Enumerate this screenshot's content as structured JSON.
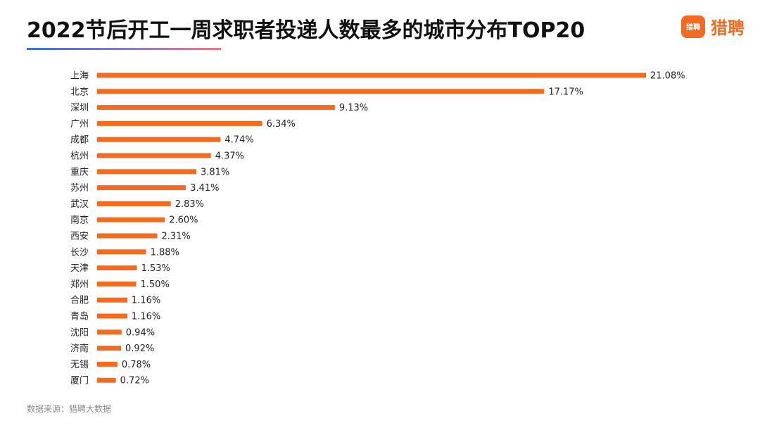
{
  "header": {
    "title": "2022节后开工一周求职者投递人数最多的城市分布TOP20",
    "brand_icon_text": "猎聘",
    "brand_name": "猎聘",
    "brand_icon": "speech-bubble-icon",
    "brand_color": "#f26b21"
  },
  "footer": {
    "source": "数据来源：猎聘大数据"
  },
  "chart_data": {
    "type": "bar",
    "orientation": "horizontal",
    "categories": [
      "上海",
      "北京",
      "深圳",
      "广州",
      "成都",
      "杭州",
      "重庆",
      "苏州",
      "武汉",
      "南京",
      "西安",
      "长沙",
      "天津",
      "郑州",
      "合肥",
      "青岛",
      "沈阳",
      "济南",
      "无锡",
      "厦门"
    ],
    "values": [
      21.08,
      17.17,
      9.13,
      6.34,
      4.74,
      4.37,
      3.81,
      3.41,
      2.83,
      2.6,
      2.31,
      1.88,
      1.53,
      1.5,
      1.16,
      1.16,
      0.94,
      0.92,
      0.78,
      0.72
    ],
    "value_labels": [
      "21.08%",
      "17.17%",
      "9.13%",
      "6.34%",
      "4.74%",
      "4.37%",
      "3.81%",
      "3.41%",
      "2.83%",
      "2.60%",
      "2.31%",
      "1.88%",
      "1.53%",
      "1.50%",
      "1.16%",
      "1.16%",
      "0.94%",
      "0.92%",
      "0.78%",
      "0.72%"
    ],
    "unit": "%",
    "bar_color": "#f26b21",
    "grid": false,
    "legend": "none"
  }
}
